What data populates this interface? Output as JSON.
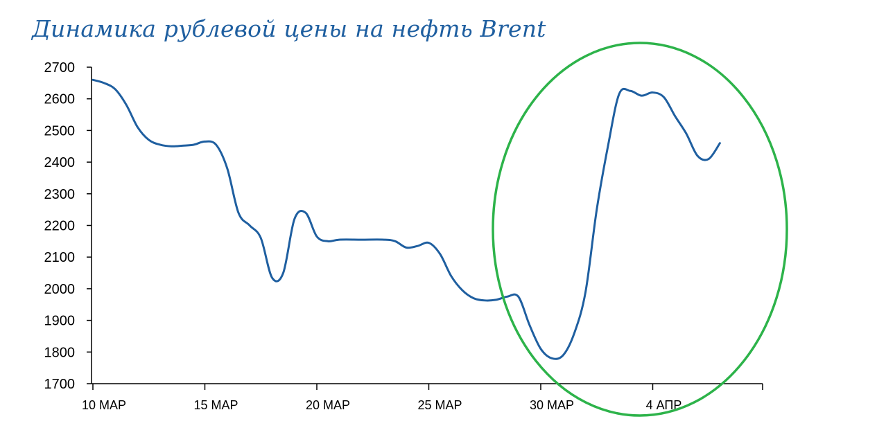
{
  "chart_data": {
    "type": "line",
    "title": "Динамика рублевой цены на нефть Brent",
    "xlabel": "",
    "ylabel": "",
    "ylim": [
      1700,
      2700
    ],
    "yticks": [
      1700,
      1800,
      1900,
      2000,
      2100,
      2200,
      2300,
      2400,
      2500,
      2600,
      2700
    ],
    "xtick_labels": [
      "10 МАР",
      "15 МАР",
      "20 МАР",
      "25 МАР",
      "30 МАР",
      "4 АПР"
    ],
    "grid": false,
    "series": [
      {
        "color": "#1f5fa0",
        "points": [
          [
            "10 МАР",
            2660
          ],
          [
            "10.5 МАР",
            2650
          ],
          [
            "11 МАР",
            2630
          ],
          [
            "11.5 МАР",
            2580
          ],
          [
            "12 МАР",
            2510
          ],
          [
            "12.5 МАР",
            2470
          ],
          [
            "13 МАР",
            2455
          ],
          [
            "13.5 МАР",
            2450
          ],
          [
            "14 МАР",
            2452
          ],
          [
            "14.5 МАР",
            2455
          ],
          [
            "15 МАР",
            2465
          ],
          [
            "15.5 МАР",
            2455
          ],
          [
            "16 МАР",
            2380
          ],
          [
            "16.5 МАР",
            2240
          ],
          [
            "17 МАР",
            2200
          ],
          [
            "17.5 МАР",
            2160
          ],
          [
            "18 МАР",
            2035
          ],
          [
            "18.5 МАР",
            2050
          ],
          [
            "19 МАР",
            2220
          ],
          [
            "19.5 МАР",
            2240
          ],
          [
            "20 МАР",
            2165
          ],
          [
            "20.5 МАР",
            2150
          ],
          [
            "21 МАР",
            2155
          ],
          [
            "22 МАР",
            2155
          ],
          [
            "23 МАР",
            2155
          ],
          [
            "23.5 МАР",
            2150
          ],
          [
            "24 МАР",
            2130
          ],
          [
            "24.5 МАР",
            2135
          ],
          [
            "25 МАР",
            2145
          ],
          [
            "25.5 МАР",
            2110
          ],
          [
            "26 МАР",
            2040
          ],
          [
            "26.5 МАР",
            1995
          ],
          [
            "27 МАР",
            1970
          ],
          [
            "27.5 МАР",
            1963
          ],
          [
            "28 МАР",
            1965
          ],
          [
            "28.5 МАР",
            1975
          ],
          [
            "29 МАР",
            1975
          ],
          [
            "29.5 МАР",
            1885
          ],
          [
            "30 МАР",
            1810
          ],
          [
            "30.5 МАР",
            1780
          ],
          [
            "31 МАР",
            1790
          ],
          [
            "31.5 МАР",
            1860
          ],
          [
            "1 АПР",
            1990
          ],
          [
            "1.5 АПР",
            2250
          ],
          [
            "2 АПР",
            2450
          ],
          [
            "2.5 АПР",
            2615
          ],
          [
            "3 АПР",
            2625
          ],
          [
            "3.5 АПР",
            2610
          ],
          [
            "4 АПР",
            2620
          ],
          [
            "4.5 АПР",
            2605
          ],
          [
            "5 АПР",
            2545
          ],
          [
            "5.5 АПР",
            2490
          ],
          [
            "6 АПР",
            2420
          ],
          [
            "6.5 АПР",
            2410
          ],
          [
            "7 АПР",
            2460
          ]
        ],
        "values": [
          2660,
          2650,
          2630,
          2580,
          2510,
          2470,
          2455,
          2450,
          2452,
          2455,
          2465,
          2455,
          2380,
          2240,
          2200,
          2160,
          2035,
          2050,
          2220,
          2240,
          2165,
          2150,
          2155,
          2155,
          2155,
          2150,
          2130,
          2135,
          2145,
          2110,
          2040,
          1995,
          1970,
          1963,
          1965,
          1975,
          1975,
          1885,
          1810,
          1780,
          1790,
          1860,
          1990,
          2250,
          2450,
          2615,
          2625,
          2610,
          2620,
          2605,
          2545,
          2490,
          2420,
          2410,
          2460
        ]
      }
    ],
    "annotation": {
      "shape": "ellipse",
      "color": "#2db34a"
    }
  }
}
